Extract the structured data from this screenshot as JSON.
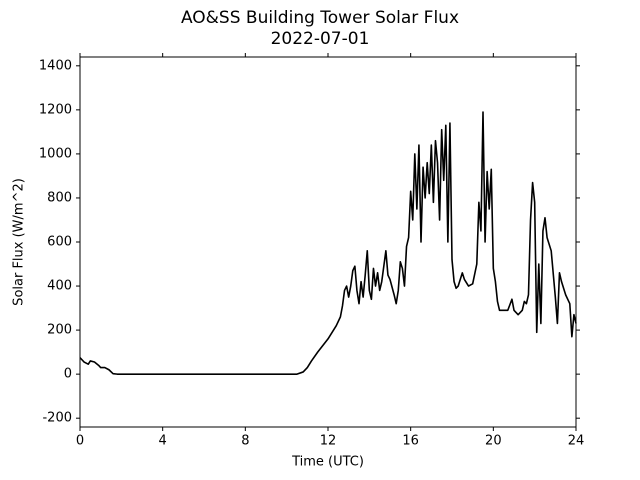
{
  "chart_data": {
    "type": "line",
    "title": "AO&SS Building Tower Solar Flux",
    "subtitle": "2022-07-01",
    "x_label": "Time (UTC)",
    "y_label": "Solar Flux (W/m^2)",
    "color": "#000000",
    "xlim": [
      0,
      24
    ],
    "xticks": [
      0,
      4,
      8,
      12,
      16,
      20,
      24
    ],
    "ylim": [
      -240,
      1440
    ],
    "yticks": [
      -200,
      0,
      200,
      400,
      600,
      800,
      1000,
      1200,
      1400
    ],
    "x": [
      0,
      0.2,
      0.4,
      0.5,
      0.7,
      0.9,
      1.0,
      1.2,
      1.4,
      1.6,
      1.8,
      10.5,
      10.8,
      11.0,
      11.2,
      11.5,
      12.0,
      12.4,
      12.6,
      12.7,
      12.8,
      12.9,
      13.0,
      13.1,
      13.2,
      13.3,
      13.4,
      13.5,
      13.6,
      13.7,
      13.8,
      13.9,
      14.0,
      14.1,
      14.2,
      14.3,
      14.4,
      14.5,
      14.6,
      14.8,
      14.9,
      15.0,
      15.2,
      15.3,
      15.4,
      15.5,
      15.6,
      15.7,
      15.8,
      15.9,
      16.0,
      16.1,
      16.2,
      16.3,
      16.4,
      16.5,
      16.6,
      16.7,
      16.8,
      16.9,
      17.0,
      17.1,
      17.2,
      17.3,
      17.4,
      17.5,
      17.6,
      17.7,
      17.8,
      17.9,
      18.0,
      18.1,
      18.2,
      18.3,
      18.5,
      18.6,
      18.8,
      19.0,
      19.2,
      19.3,
      19.4,
      19.5,
      19.6,
      19.7,
      19.8,
      19.9,
      20.0,
      20.1,
      20.2,
      20.3,
      20.5,
      20.7,
      20.9,
      21.0,
      21.2,
      21.4,
      21.5,
      21.6,
      21.7,
      21.8,
      21.9,
      22.0,
      22.1,
      22.2,
      22.3,
      22.4,
      22.5,
      22.6,
      22.8,
      23.0,
      23.1,
      23.2,
      23.3,
      23.5,
      23.7,
      23.8,
      23.9,
      24.0
    ],
    "values": [
      75,
      55,
      45,
      60,
      55,
      40,
      30,
      30,
      20,
      2,
      0,
      0,
      10,
      30,
      60,
      100,
      160,
      220,
      260,
      310,
      380,
      400,
      350,
      400,
      470,
      490,
      380,
      320,
      420,
      350,
      450,
      560,
      380,
      340,
      480,
      400,
      460,
      380,
      420,
      560,
      450,
      430,
      360,
      320,
      380,
      510,
      480,
      400,
      580,
      620,
      830,
      700,
      1000,
      750,
      1040,
      600,
      940,
      800,
      960,
      820,
      1040,
      780,
      1060,
      960,
      700,
      1110,
      880,
      1130,
      600,
      1140,
      520,
      420,
      390,
      400,
      460,
      430,
      400,
      410,
      500,
      780,
      650,
      1190,
      600,
      920,
      750,
      930,
      480,
      420,
      330,
      290,
      290,
      290,
      340,
      290,
      270,
      290,
      330,
      320,
      360,
      700,
      870,
      780,
      190,
      500,
      230,
      650,
      710,
      620,
      560,
      350,
      230,
      460,
      420,
      360,
      320,
      170,
      270,
      230
    ]
  }
}
